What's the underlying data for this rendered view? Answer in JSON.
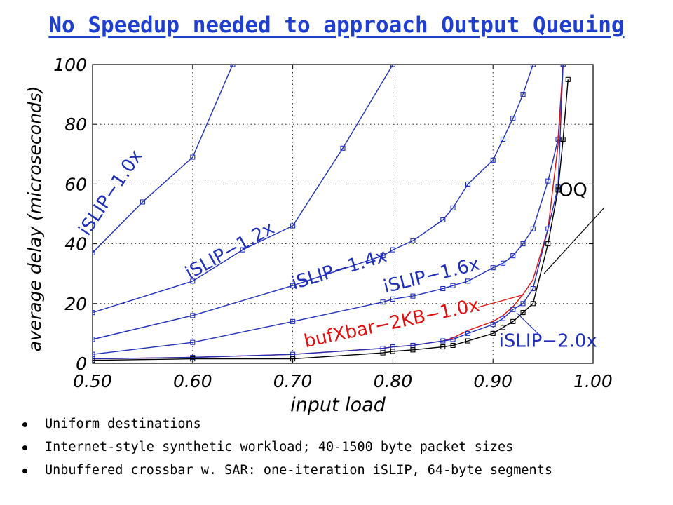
{
  "title": "No Speedup needed to approach Output Queuing",
  "bullets": [
    "Uniform destinations",
    "Internet-style synthetic workload; 40-1500 byte packet sizes",
    "Unbuffered crossbar w. SAR: one-iteration iSLIP, 64-byte segments"
  ],
  "colors": {
    "title": "#1f3fd0",
    "islip": "#1f2fb8",
    "bufxbar": "#e01010",
    "oq": "#000000"
  },
  "chart_data": {
    "type": "line",
    "xlabel": "input load",
    "ylabel": "average delay (microseconds)",
    "xlim": [
      0.5,
      1.0
    ],
    "ylim": [
      0,
      100
    ],
    "xticks": [
      "0.50",
      "0.60",
      "0.70",
      "0.80",
      "0.90",
      "1.00"
    ],
    "yticks": [
      "0",
      "20",
      "40",
      "60",
      "80",
      "100"
    ],
    "grid": true,
    "series": [
      {
        "name": "iSLIP−1.0x",
        "color": "#1f2fb8",
        "marker": "square",
        "x": [
          0.5,
          0.55,
          0.6,
          0.64
        ],
        "y": [
          37,
          54,
          69,
          100
        ]
      },
      {
        "name": "iSLIP−1.2x",
        "color": "#1f2fb8",
        "marker": "square",
        "x": [
          0.5,
          0.6,
          0.65,
          0.7,
          0.75,
          0.8
        ],
        "y": [
          17,
          27.5,
          38,
          46,
          72,
          100
        ]
      },
      {
        "name": "iSLIP−1.4x",
        "color": "#1f2fb8",
        "marker": "square",
        "x": [
          0.5,
          0.6,
          0.7,
          0.79,
          0.8,
          0.82,
          0.85,
          0.86,
          0.875,
          0.9,
          0.91,
          0.92,
          0.93,
          0.94
        ],
        "y": [
          8,
          16,
          26,
          36,
          38,
          41,
          48,
          52,
          60,
          68,
          75,
          82,
          90,
          100
        ]
      },
      {
        "name": "iSLIP−1.6x",
        "color": "#1f2fb8",
        "marker": "square",
        "x": [
          0.5,
          0.6,
          0.7,
          0.79,
          0.8,
          0.82,
          0.85,
          0.86,
          0.875,
          0.9,
          0.91,
          0.92,
          0.93,
          0.94,
          0.955,
          0.965,
          0.97
        ],
        "y": [
          3,
          7,
          14,
          20.5,
          21.5,
          22.5,
          25,
          26,
          27.5,
          32,
          33.5,
          36,
          40,
          45,
          61,
          75,
          100
        ]
      },
      {
        "name": "bufXbar−2KB−1.0x",
        "color": "#e01010",
        "marker": "none",
        "x": [
          0.5,
          0.6,
          0.7,
          0.79,
          0.8,
          0.82,
          0.85,
          0.86,
          0.875,
          0.9,
          0.91,
          0.92,
          0.93,
          0.94,
          0.955,
          0.965,
          0.97
        ],
        "y": [
          1.5,
          2,
          3,
          5,
          5.5,
          6,
          7.5,
          8.5,
          11,
          14,
          16,
          19,
          23,
          28,
          45,
          73,
          100
        ]
      },
      {
        "name": "iSLIP−2.0x",
        "color": "#1f2fb8",
        "marker": "square",
        "x": [
          0.5,
          0.6,
          0.7,
          0.79,
          0.8,
          0.82,
          0.85,
          0.86,
          0.875,
          0.9,
          0.91,
          0.92,
          0.93,
          0.94,
          0.955,
          0.965,
          0.97
        ],
        "y": [
          1.5,
          2,
          3,
          5,
          5.5,
          6,
          7.5,
          8,
          10,
          13,
          15,
          18,
          20,
          25,
          45,
          59,
          100
        ]
      },
      {
        "name": "OQ",
        "color": "#000000",
        "marker": "square",
        "x": [
          0.5,
          0.6,
          0.7,
          0.79,
          0.8,
          0.82,
          0.85,
          0.86,
          0.875,
          0.9,
          0.91,
          0.92,
          0.93,
          0.94,
          0.955,
          0.965,
          0.97,
          0.975
        ],
        "y": [
          1,
          1.5,
          1.5,
          3.5,
          4,
          4.5,
          5.5,
          6,
          7.5,
          10,
          12,
          14,
          17,
          20,
          40,
          58,
          75,
          95
        ]
      }
    ],
    "annotations": [
      {
        "text": "iSLIP−1.0x",
        "color": "#1f2fb8",
        "at": [
          0.523,
          56
        ],
        "angle": -56
      },
      {
        "text": "iSLIP−1.2x",
        "color": "#1f2fb8",
        "at": [
          0.64,
          36
        ],
        "angle": -29
      },
      {
        "text": "iSLIP−1.4x",
        "color": "#1f2fb8",
        "at": [
          0.748,
          29.5
        ],
        "angle": -17
      },
      {
        "text": "iSLIP−1.6x",
        "color": "#1f2fb8",
        "at": [
          0.84,
          27.5
        ],
        "angle": -14
      },
      {
        "text": "bufXbar−2KB−1.0x",
        "color": "#e01010",
        "at": [
          0.8,
          11.5
        ],
        "angle": -12
      },
      {
        "text": "iSLIP−2.0x",
        "color": "#1f2fb8",
        "at": [
          0.955,
          5.5
        ],
        "angle": 0
      },
      {
        "text": "OQ",
        "color": "#000000",
        "at": [
          0.98,
          56
        ],
        "angle": 0
      }
    ]
  }
}
